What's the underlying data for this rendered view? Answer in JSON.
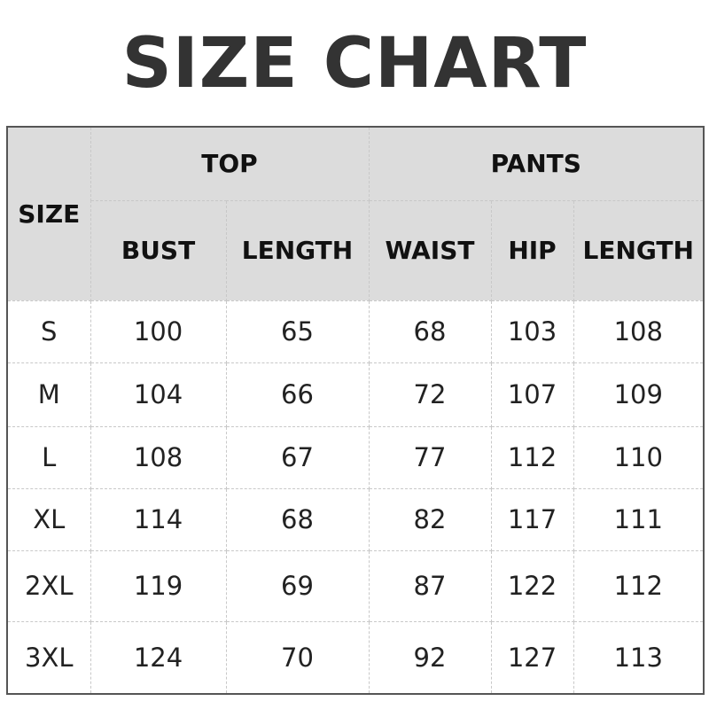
{
  "title": "SIZE CHART",
  "table": {
    "size_header": "SIZE",
    "groups": [
      "TOP",
      "PANTS"
    ],
    "columns": [
      "BUST",
      "LENGTH",
      "WAIST",
      "HIP",
      "LENGTH"
    ],
    "rows": [
      [
        "S",
        "100",
        "65",
        "68",
        "103",
        "108"
      ],
      [
        "M",
        "104",
        "66",
        "72",
        "107",
        "109"
      ],
      [
        "L",
        "108",
        "67",
        "77",
        "112",
        "110"
      ],
      [
        "XL",
        "114",
        "68",
        "82",
        "117",
        "111"
      ],
      [
        "2XL",
        "119",
        "69",
        "87",
        "122",
        "112"
      ],
      [
        "3XL",
        "124",
        "70",
        "92",
        "127",
        "113"
      ]
    ]
  },
  "colors": {
    "header_bg": "#dcdcdc",
    "title": "#333333"
  }
}
